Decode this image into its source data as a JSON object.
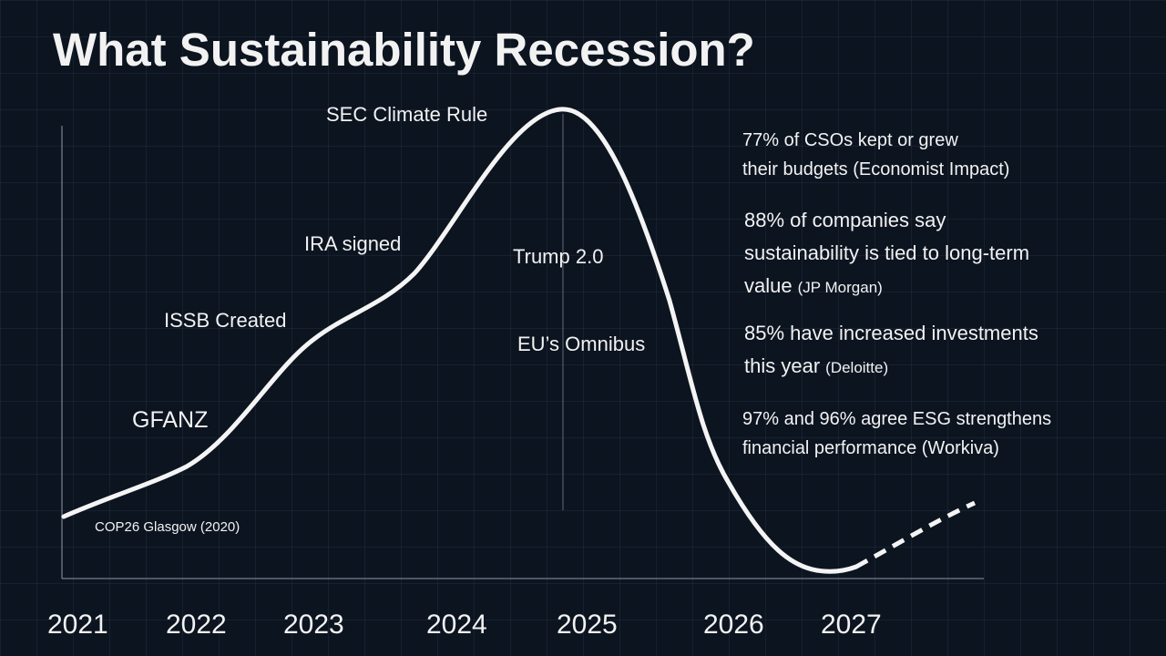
{
  "title": "What Sustainability Recession?",
  "years": [
    "2021",
    "2022",
    "2023",
    "2024",
    "2025",
    "2026",
    "2027"
  ],
  "annotations": [
    "SEC Climate Rule",
    "IRA signed",
    "Trump 2.0",
    "ISSB Created",
    "EU’s Omnibus",
    "GFANZ",
    "COP26 Glasgow (2020)"
  ],
  "stats": [
    {
      "lines": [
        "77% of CSOs kept or grew",
        "their budgets (Economist Impact)"
      ]
    },
    {
      "lines": [
        "88% of companies say",
        "sustainability is tied to long-term",
        "value"
      ],
      "source": "(JP Morgan)"
    },
    {
      "lines": [
        "85% have increased investments",
        "this year"
      ],
      "source": "(Deloitte)"
    },
    {
      "lines": [
        "97% and 96% agree ESG strengthens",
        "financial performance (Workiva)"
      ]
    }
  ]
}
